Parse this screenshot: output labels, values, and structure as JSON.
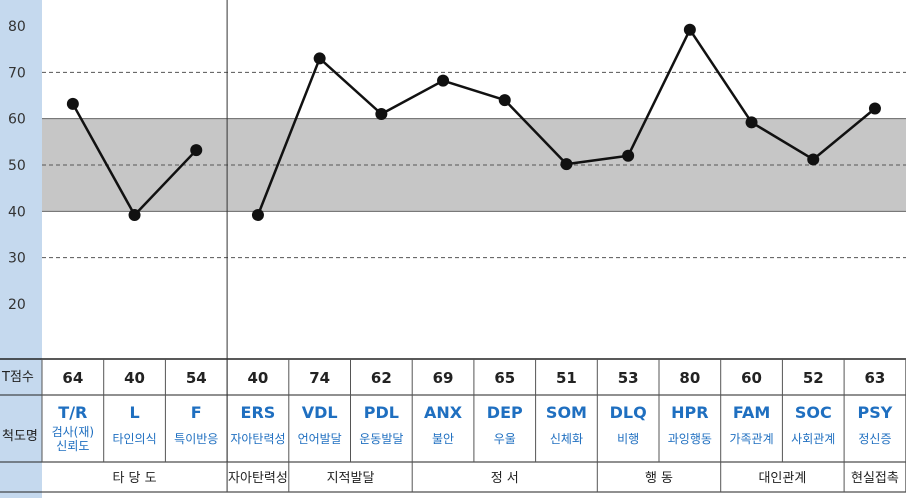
{
  "chart_data": {
    "type": "line",
    "title": "",
    "ylabel": "",
    "xlabel": "",
    "ylim": [
      10,
      85
    ],
    "yticks": [
      20,
      30,
      40,
      50,
      60,
      70,
      80
    ],
    "dashed_gridlines": [
      30,
      50,
      70
    ],
    "solid_gridlines": [
      40,
      60
    ],
    "normal_band": [
      40,
      60
    ],
    "row_labels": {
      "score": "T점수",
      "scale": "척도명"
    },
    "colors": {
      "band": "#c6c6c6",
      "axis_bar": "#c5d9ee",
      "label_blue": "#1f6fc0",
      "line": "#111111"
    },
    "scales": [
      {
        "code": "T/R",
        "name": [
          "검사(재)",
          "신뢰도"
        ],
        "score": 64,
        "plot": 63.2
      },
      {
        "code": "L",
        "name": [
          "타인의식"
        ],
        "score": 40,
        "plot": 39.2
      },
      {
        "code": "F",
        "name": [
          "특이반응"
        ],
        "score": 54,
        "plot": 53.2
      },
      {
        "code": "ERS",
        "name": [
          "자아탄력성"
        ],
        "score": 40,
        "plot": 39.2
      },
      {
        "code": "VDL",
        "name": [
          "언어발달"
        ],
        "score": 74,
        "plot": 73.0
      },
      {
        "code": "PDL",
        "name": [
          "운동발달"
        ],
        "score": 62,
        "plot": 61.0
      },
      {
        "code": "ANX",
        "name": [
          "불안"
        ],
        "score": 69,
        "plot": 68.2
      },
      {
        "code": "DEP",
        "name": [
          "우울"
        ],
        "score": 65,
        "plot": 64.0
      },
      {
        "code": "SOM",
        "name": [
          "신체화"
        ],
        "score": 51,
        "plot": 50.2
      },
      {
        "code": "DLQ",
        "name": [
          "비행"
        ],
        "score": 53,
        "plot": 52.0
      },
      {
        "code": "HPR",
        "name": [
          "과잉행동"
        ],
        "score": 80,
        "plot": 79.2
      },
      {
        "code": "FAM",
        "name": [
          "가족관계"
        ],
        "score": 60,
        "plot": 59.2
      },
      {
        "code": "SOC",
        "name": [
          "사회관계"
        ],
        "score": 52,
        "plot": 51.2
      },
      {
        "code": "PSY",
        "name": [
          "정신증"
        ],
        "score": 63,
        "plot": 62.2
      }
    ],
    "segments": [
      [
        0,
        2
      ],
      [
        3,
        13
      ]
    ],
    "groups": [
      {
        "label": "타 당 도",
        "from": 0,
        "to": 2
      },
      {
        "label": "자아탄력성",
        "from": 3,
        "to": 3
      },
      {
        "label": "지적발달",
        "from": 4,
        "to": 5
      },
      {
        "label": "정 서",
        "from": 6,
        "to": 8
      },
      {
        "label": "행 동",
        "from": 9,
        "to": 10
      },
      {
        "label": "대인관계",
        "from": 11,
        "to": 12
      },
      {
        "label": "현실접촉",
        "from": 13,
        "to": 13
      }
    ]
  }
}
